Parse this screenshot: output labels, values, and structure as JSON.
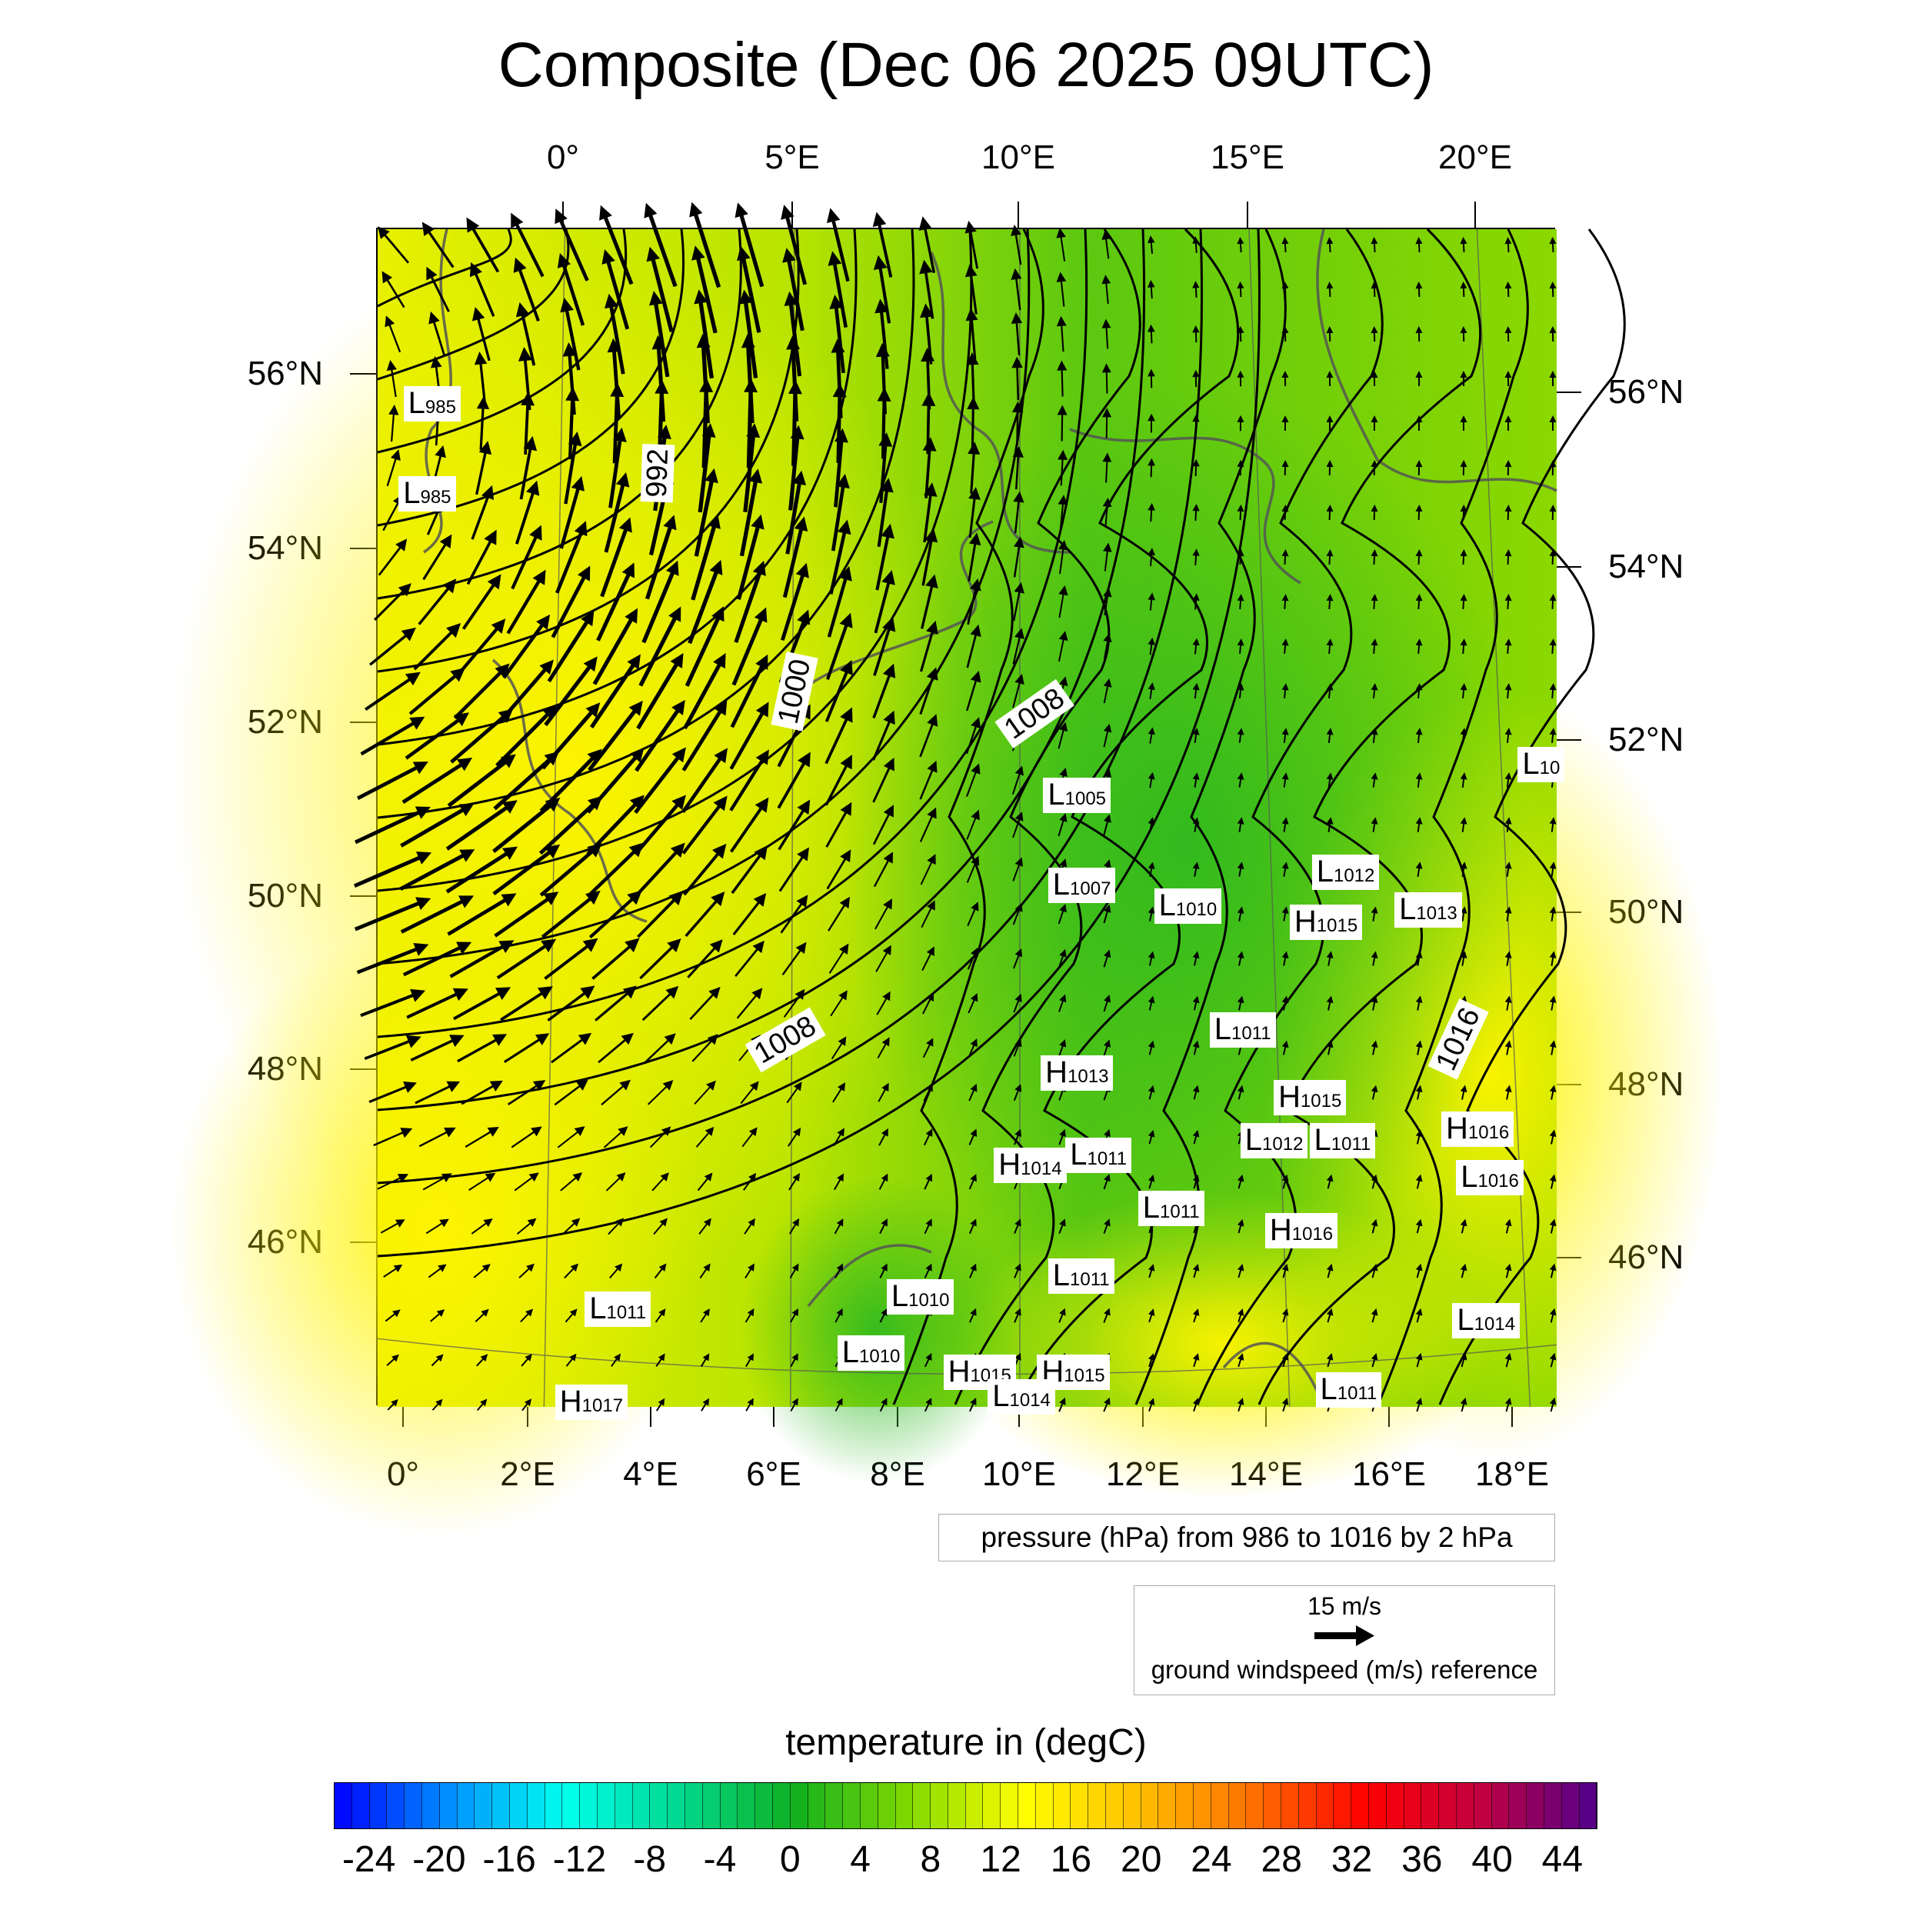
{
  "title": "Composite (Dec 06 2025 09UTC)",
  "axes": {
    "top_lon": [
      "0°",
      "5°E",
      "10°E",
      "15°E",
      "20°E"
    ],
    "bottom_lon": [
      "0°",
      "2°E",
      "4°E",
      "6°E",
      "8°E",
      "10°E",
      "12°E",
      "14°E",
      "16°E",
      "18°E"
    ],
    "left_lat": [
      "56°N",
      "54°N",
      "52°N",
      "50°N",
      "48°N",
      "46°N"
    ],
    "right_lat": [
      "56°N",
      "54°N",
      "52°N",
      "50°N",
      "48°N",
      "46°N"
    ]
  },
  "pressure_centers": [
    {
      "type": "L",
      "value": "985"
    },
    {
      "type": "L",
      "value": "985"
    },
    {
      "type": "L",
      "value": "1005"
    },
    {
      "type": "L",
      "value": "1007"
    },
    {
      "type": "L",
      "value": "1010"
    },
    {
      "type": "L",
      "value": "1012"
    },
    {
      "type": "H",
      "value": "1015"
    },
    {
      "type": "L",
      "value": "1013"
    },
    {
      "type": "L",
      "value": "10"
    },
    {
      "type": "L",
      "value": "1011"
    },
    {
      "type": "H",
      "value": "1013"
    },
    {
      "type": "H",
      "value": "1015"
    },
    {
      "type": "H",
      "value": "1016"
    },
    {
      "type": "L",
      "value": "1012"
    },
    {
      "type": "L",
      "value": "1011"
    },
    {
      "type": "H",
      "value": "1014"
    },
    {
      "type": "L",
      "value": "1011"
    },
    {
      "type": "L",
      "value": "1016"
    },
    {
      "type": "L",
      "value": "1011"
    },
    {
      "type": "H",
      "value": "1016"
    },
    {
      "type": "L",
      "value": "1011"
    },
    {
      "type": "L",
      "value": "1011"
    },
    {
      "type": "L",
      "value": "1010"
    },
    {
      "type": "L",
      "value": "1014"
    },
    {
      "type": "L",
      "value": "1010"
    },
    {
      "type": "H",
      "value": "1015"
    },
    {
      "type": "H",
      "value": "1015"
    },
    {
      "type": "L",
      "value": "1014"
    },
    {
      "type": "L",
      "value": "1011"
    },
    {
      "type": "H",
      "value": "1017"
    }
  ],
  "isobar_labels": [
    "992",
    "1000",
    "1008",
    "1008",
    "1016"
  ],
  "pressure_legend": "pressure (hPa) from 986 to 1016 by 2 hPa",
  "wind_legend": {
    "reference": "15 m/s",
    "description": "ground windspeed (m/s) reference"
  },
  "colorbar": {
    "title": "temperature in (degC)",
    "min": -26,
    "max": 46,
    "step": 1,
    "labels": [
      "-24",
      "-20",
      "-16",
      "-12",
      "-8",
      "-4",
      "0",
      "4",
      "8",
      "12",
      "16",
      "20",
      "24",
      "28",
      "32",
      "36",
      "40",
      "44"
    ],
    "color_stops": [
      "#0000ff",
      "#0090ff",
      "#00ffee",
      "#00d890",
      "#10b020",
      "#80d800",
      "#ffff00",
      "#ffc000",
      "#ff7000",
      "#ff0000",
      "#c00040",
      "#50008c"
    ]
  }
}
